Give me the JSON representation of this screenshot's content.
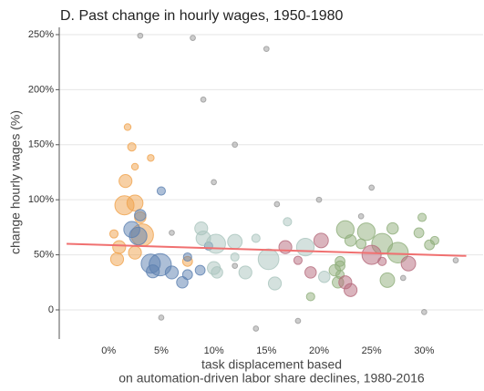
{
  "chart_data": {
    "type": "bubble",
    "title": "D. Past change in hourly wages, 1950-1980",
    "x_label": [
      "task displacement based",
      "on automation-driven labor share declines, 1980-2016"
    ],
    "y_label": "change hourly wages (%)",
    "xlim": [
      -4.7,
      35.6
    ],
    "ylim": [
      -26.5,
      256.6
    ],
    "xticks": [
      {
        "value": 0,
        "label": "0%"
      },
      {
        "value": 5,
        "label": "5%"
      },
      {
        "value": 10,
        "label": "10%"
      },
      {
        "value": 15,
        "label": "15%"
      },
      {
        "value": 20,
        "label": "20%"
      },
      {
        "value": 25,
        "label": "25%"
      },
      {
        "value": 30,
        "label": "30%"
      }
    ],
    "yticks": [
      0,
      {
        "value": 50,
        "label": "50%"
      },
      {
        "value": 100,
        "label": "100%"
      },
      {
        "value": 150,
        "label": "150%"
      },
      {
        "value": 200,
        "label": "200%"
      },
      {
        "value": 250,
        "label": "250%"
      }
    ],
    "grid": true,
    "series": [
      {
        "color": "#f0a24c",
        "x": [
          1.5,
          2.5,
          1.6,
          1,
          0.8,
          2.5,
          3.2,
          3,
          2.2,
          1.8,
          2.5,
          7.5,
          0.5,
          4
        ],
        "values": [
          95,
          97,
          117,
          57,
          46,
          52,
          68,
          84,
          148,
          166,
          130,
          44,
          69,
          138
        ],
        "sizes": [
          10,
          8,
          6,
          6,
          6,
          6,
          12,
          5,
          3,
          2,
          2,
          4,
          3,
          2
        ]
      },
      {
        "color": "#5b7fb0",
        "x": [
          2.2,
          2.8,
          4,
          4.9,
          4.2,
          6,
          7,
          5,
          3,
          7.5,
          8.7,
          7.5,
          9.5
        ],
        "values": [
          73,
          67,
          42,
          41,
          35,
          34,
          25,
          108,
          86,
          32,
          36,
          48,
          58
        ],
        "sizes": [
          8,
          9,
          10,
          12,
          6,
          6,
          5,
          3,
          5,
          4,
          4,
          3,
          3
        ]
      },
      {
        "color": "#a9c4bd",
        "x": [
          8.8,
          9,
          10.2,
          10,
          10.3,
          12,
          13,
          15.2,
          15.8,
          18.7,
          17,
          14,
          12,
          20.5
        ],
        "values": [
          74,
          65,
          60,
          38,
          34,
          62,
          34,
          46,
          24,
          57,
          80,
          65,
          48,
          30
        ],
        "sizes": [
          6,
          7,
          10,
          6,
          5,
          7,
          6,
          11,
          6,
          9,
          3,
          3,
          3,
          5
        ]
      },
      {
        "color": "#8fae7a",
        "x": [
          22.5,
          24.5,
          26,
          23,
          22,
          21.5,
          22,
          26.5,
          27,
          29.5,
          29.8,
          30.5,
          31,
          24,
          27.5,
          19.2,
          21.8,
          22
        ],
        "values": [
          73,
          71,
          60,
          63,
          44,
          36,
          32,
          27,
          74,
          70,
          84,
          59,
          63,
          60,
          52,
          12,
          25,
          40
        ],
        "sizes": [
          9,
          9,
          11,
          5,
          4,
          5,
          3,
          7,
          5,
          4,
          3,
          4,
          3,
          4,
          11,
          3,
          5,
          4
        ]
      },
      {
        "color": "#b56a7c",
        "x": [
          16.8,
          19.2,
          20.2,
          22.5,
          23,
          25,
          28.5,
          18,
          26
        ],
        "values": [
          57,
          34,
          63,
          25,
          18,
          50,
          42,
          45,
          44
        ],
        "sizes": [
          6,
          5,
          7,
          6,
          6,
          10,
          7,
          3,
          3
        ]
      },
      {
        "color": "#999999",
        "x": [
          9,
          15,
          12,
          20,
          16,
          25,
          10,
          5,
          30,
          18,
          14,
          8,
          3,
          24,
          33,
          12,
          6,
          28
        ],
        "values": [
          191,
          237,
          40,
          100,
          96,
          111,
          116,
          -7,
          -2,
          -10,
          -17,
          247,
          249,
          85,
          45,
          150,
          70,
          29
        ],
        "sizes": [
          1,
          1,
          1,
          1,
          1,
          1,
          1,
          1,
          1,
          1,
          1,
          1,
          1,
          1,
          1,
          1,
          1,
          1
        ]
      }
    ],
    "trend_line": {
      "color": "#f07070",
      "x": [
        -4,
        34
      ],
      "values": [
        60,
        49
      ]
    }
  }
}
